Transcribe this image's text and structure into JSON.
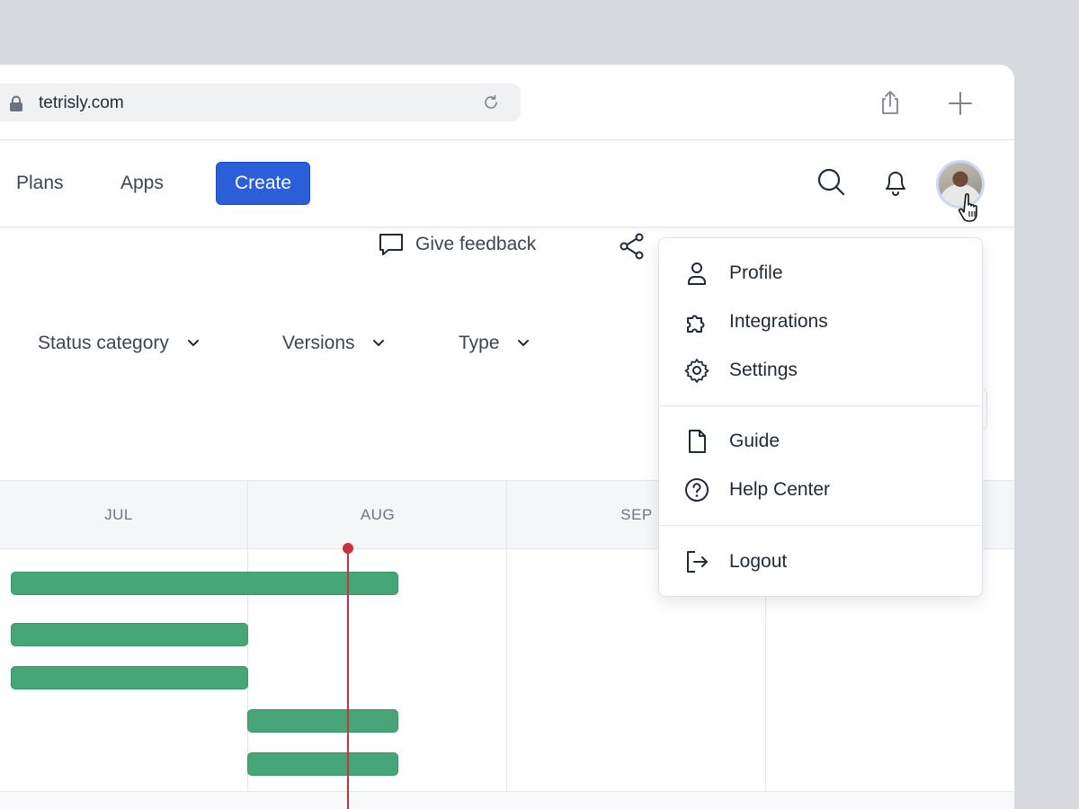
{
  "browser": {
    "url": "tetrisly.com",
    "icons": {
      "lock": "lock-icon",
      "reload": "reload-icon",
      "share": "share-icon",
      "new_tab": "plus-icon"
    }
  },
  "header": {
    "nav": [
      {
        "label": "Plans"
      },
      {
        "label": "Apps"
      }
    ],
    "create_label": "Create",
    "icons": {
      "search": "search-icon",
      "notifications": "bell-icon",
      "avatar": "user-avatar"
    },
    "accent_color": "#2b5fd9"
  },
  "toolbar": {
    "feedback_label": "Give feedback",
    "filters": [
      {
        "label": "Status category"
      },
      {
        "label": "Versions"
      },
      {
        "label": "Type"
      }
    ]
  },
  "timeline": {
    "months": [
      "JUL",
      "AUG",
      "SEP"
    ],
    "bar_color": "#47a677",
    "today_color": "#c8323a"
  },
  "user_menu": {
    "groups": [
      [
        {
          "label": "Profile",
          "icon": "person-icon"
        },
        {
          "label": "Integrations",
          "icon": "puzzle-icon"
        },
        {
          "label": "Settings",
          "icon": "gear-icon"
        }
      ],
      [
        {
          "label": "Guide",
          "icon": "document-icon"
        },
        {
          "label": "Help Center",
          "icon": "help-circle-icon"
        }
      ],
      [
        {
          "label": "Logout",
          "icon": "logout-icon"
        }
      ]
    ]
  }
}
